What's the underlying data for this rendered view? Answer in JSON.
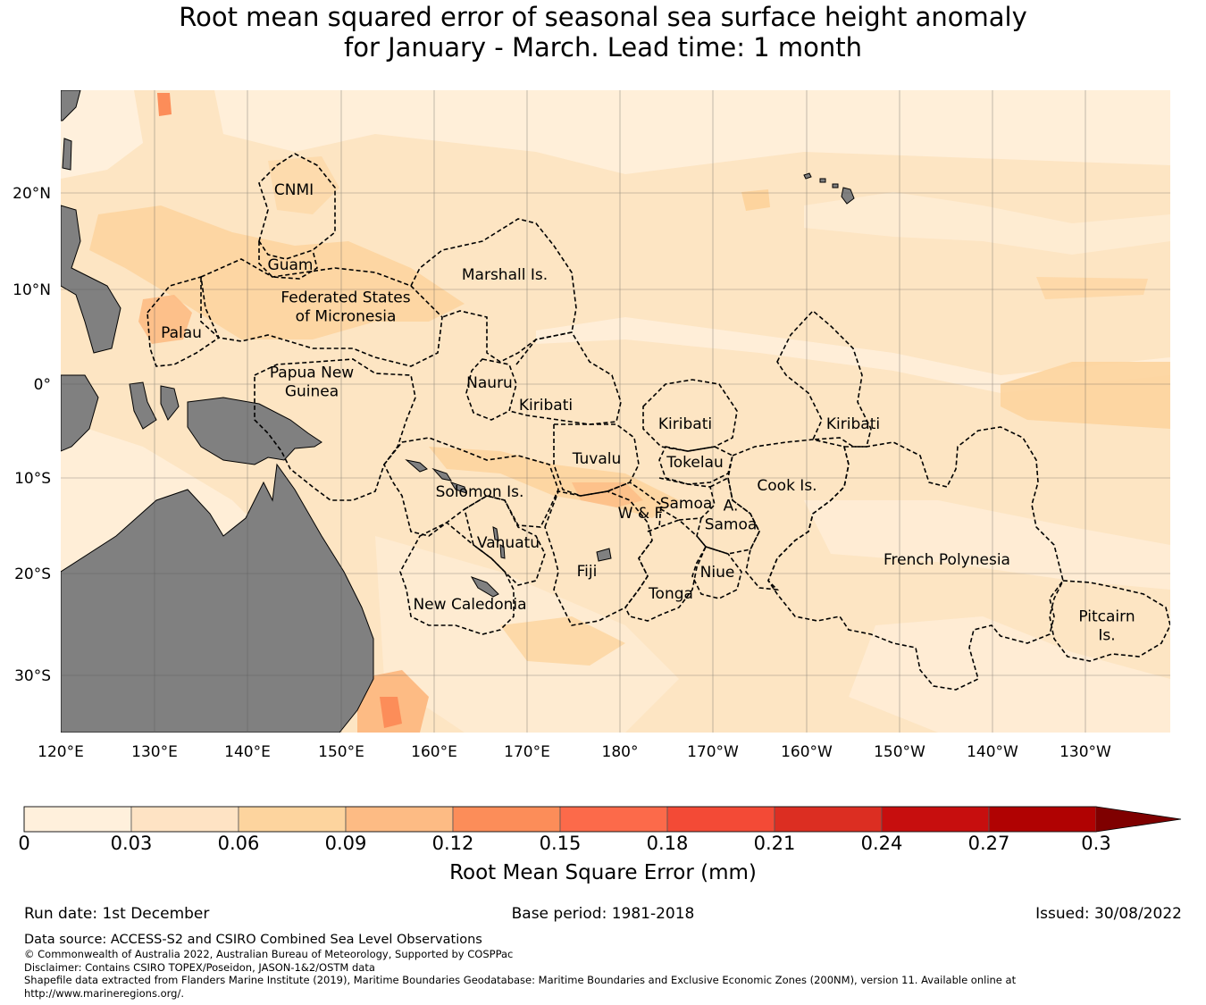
{
  "title": {
    "line1": "Root mean squared error of seasonal sea surface height anomaly",
    "line2": "for January - March. Lead time: 1 month"
  },
  "map": {
    "lat_ticks": [
      "20°N",
      "10°N",
      "0°",
      "10°S",
      "20°S",
      "30°S"
    ],
    "lon_ticks": [
      "120°E",
      "130°E",
      "140°E",
      "150°E",
      "160°E",
      "170°E",
      "180°",
      "170°W",
      "160°W",
      "150°W",
      "140°W",
      "130°W"
    ],
    "colors": {
      "land": "#808080",
      "ocean_base": "#fde5c3",
      "eez_line": "#000000",
      "grid": "#555555"
    },
    "regions": [
      {
        "id": "cnmi",
        "lines": [
          "CNMI"
        ]
      },
      {
        "id": "guam",
        "lines": [
          "Guam"
        ]
      },
      {
        "id": "marshall",
        "lines": [
          "Marshall Is."
        ]
      },
      {
        "id": "fsm",
        "lines": [
          "Federated States",
          "of Micronesia"
        ]
      },
      {
        "id": "palau",
        "lines": [
          "Palau"
        ]
      },
      {
        "id": "png",
        "lines": [
          "Papua New",
          "Guinea"
        ]
      },
      {
        "id": "nauru",
        "lines": [
          "Nauru"
        ]
      },
      {
        "id": "kiribati_west",
        "lines": [
          "Kiribati"
        ]
      },
      {
        "id": "kiribati_central",
        "lines": [
          "Kiribati"
        ]
      },
      {
        "id": "kiribati_east",
        "lines": [
          "Kiribati"
        ]
      },
      {
        "id": "tuvalu",
        "lines": [
          "Tuvalu"
        ]
      },
      {
        "id": "tokelau",
        "lines": [
          "Tokelau"
        ]
      },
      {
        "id": "solomon",
        "lines": [
          "Solomon Is."
        ]
      },
      {
        "id": "cook",
        "lines": [
          "Cook Is."
        ]
      },
      {
        "id": "samoa",
        "lines": [
          "Samoa"
        ]
      },
      {
        "id": "wf",
        "lines": [
          "W & F"
        ]
      },
      {
        "id": "asamoa",
        "lines": [
          "A.",
          "Samoa"
        ]
      },
      {
        "id": "vanuatu",
        "lines": [
          "Vanuatu"
        ]
      },
      {
        "id": "fiji",
        "lines": [
          "Fiji"
        ]
      },
      {
        "id": "niue",
        "lines": [
          "Niue"
        ]
      },
      {
        "id": "french_polynesia",
        "lines": [
          "French Polynesia"
        ]
      },
      {
        "id": "tonga",
        "lines": [
          "Tonga"
        ]
      },
      {
        "id": "new_caledonia",
        "lines": [
          "New Caledonia"
        ]
      },
      {
        "id": "pitcairn",
        "lines": [
          "Pitcairn",
          "Is."
        ]
      }
    ]
  },
  "colorbar": {
    "ticks": [
      "0",
      "0.03",
      "0.06",
      "0.09",
      "0.12",
      "0.15",
      "0.18",
      "0.21",
      "0.24",
      "0.27",
      "0.3"
    ],
    "colors": [
      "#fff0dc",
      "#fee3c4",
      "#fdd49e",
      "#fdbb84",
      "#fc8d59",
      "#fc6a4a",
      "#f34a36",
      "#dc2e22",
      "#c70e0e",
      "#b00202"
    ],
    "extend_color": "#7f0000",
    "label": "Root Mean Square Error (mm)"
  },
  "footer": {
    "run_date": "Run date: 1st December",
    "base_period": "Base period: 1981-2018",
    "issued": "Issued: 30/08/2022",
    "data_source": "Data source: ACCESS-S2 and CSIRO Combined Sea Level Observations",
    "copyright": "© Commonwealth of Australia 2022, Australian Bureau of Meteorology, Supported by COSPPac",
    "disclaimer": "Disclaimer: Contains CSIRO TOPEX/Poseidon, JASON-1&2/OSTM data",
    "shapefile_line1": "Shapefile data extracted from Flanders Marine Institute (2019), Maritime Boundaries Geodatabase: Maritime Boundaries and Exclusive Economic Zones (200NM), version 11. Available online at",
    "shapefile_line2": "http://www.marineregions.org/."
  }
}
